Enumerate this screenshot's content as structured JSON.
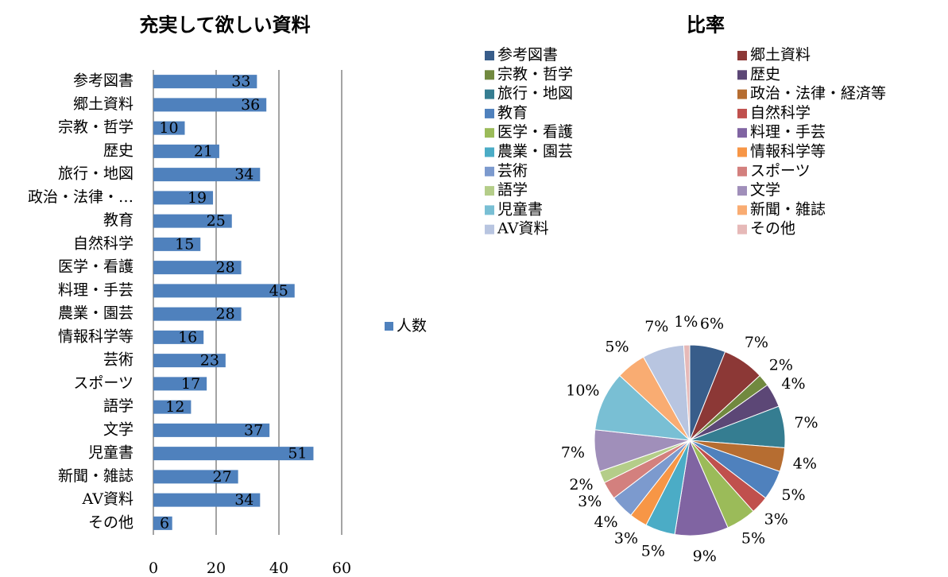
{
  "chart_data": [
    {
      "type": "bar",
      "title": "充実して欲しい資料",
      "categories": [
        "参考図書",
        "郷土資料",
        "宗教・哲学",
        "歴史",
        "旅行・地図",
        "政治・法律・…",
        "教育",
        "自然科学",
        "医学・看護",
        "料理・手芸",
        "農業・園芸",
        "情報科学等",
        "芸術",
        "スポーツ",
        "語学",
        "文学",
        "児童書",
        "新聞・雑誌",
        "AV資料",
        "その他"
      ],
      "series": [
        {
          "name": "人数",
          "color": "#4f81bd",
          "values": [
            33,
            36,
            10,
            21,
            34,
            19,
            25,
            15,
            28,
            45,
            28,
            16,
            23,
            17,
            12,
            37,
            51,
            27,
            34,
            6
          ]
        }
      ],
      "xlim": [
        0,
        60
      ],
      "xticks": [
        0,
        20,
        40,
        60
      ],
      "grid": true,
      "legend": "right"
    },
    {
      "type": "pie",
      "title": "比率",
      "categories": [
        "参考図書",
        "郷土資料",
        "宗教・哲学",
        "歴史",
        "旅行・地図",
        "政治・法律・経済等",
        "教育",
        "自然科学",
        "医学・看護",
        "料理・手芸",
        "農業・園芸",
        "情報科学等",
        "芸術",
        "スポーツ",
        "語学",
        "文学",
        "児童書",
        "新聞・雑誌",
        "AV資料",
        "その他"
      ],
      "values": [
        6,
        7,
        2,
        4,
        7,
        4,
        5,
        3,
        5,
        9,
        5,
        3,
        4,
        3,
        2,
        7,
        10,
        5,
        7,
        1
      ],
      "value_labels": [
        "6%",
        "7%",
        "2%",
        "4%",
        "7%",
        "4%",
        "5%",
        "3%",
        "5%",
        "9%",
        "5%",
        "3%",
        "4%",
        "3%",
        "2%",
        "7%",
        "10%",
        "5%",
        "7%",
        "1%"
      ],
      "colors": [
        "#385d8a",
        "#8c3836",
        "#71893f",
        "#5c4776",
        "#357d91",
        "#b66d31",
        "#4f81bd",
        "#c0504d",
        "#9bbb59",
        "#8064a2",
        "#4bacc6",
        "#f79646",
        "#7c9ace",
        "#d3807e",
        "#b4cd89",
        "#a08fba",
        "#79bfd4",
        "#f9ac72",
        "#b8c5e0",
        "#e6b9b8"
      ],
      "legend": "top"
    }
  ]
}
